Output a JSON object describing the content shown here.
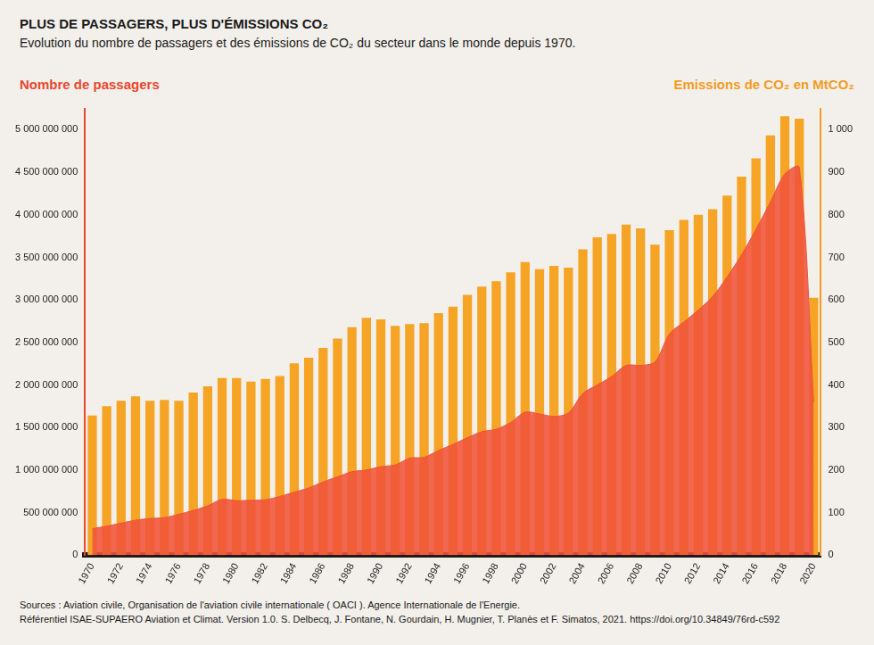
{
  "chart_data": {
    "type": "bar",
    "title": "PLUS DE PASSAGERS, PLUS D'ÉMISSIONS CO₂",
    "subtitle": "Evolution du nombre de passagers et des émissions de CO₂ du secteur dans le monde depuis 1970.",
    "y_label": "Nombre de passagers",
    "y2_label": "Emissions de CO₂ en MtCO₂",
    "source": [
      "Sources : Aviation civile, Organisation de l'aviation civile internationale ( OACI ). Agence Internationale de l'Energie.",
      "Référentiel ISAE-SUPAERO Aviation et Climat. Version 1.0. S. Delbecq, J. Fontane, N. Gourdain, H. Mugnier, T. Planès et F. Simatos, 2021. https://doi.org/10.34849/76rd-c592"
    ],
    "categories": [
      "1970",
      null,
      "1972",
      null,
      "1974",
      null,
      "1976",
      null,
      "1978",
      null,
      "1980",
      null,
      "1982",
      null,
      "1984",
      null,
      "1986",
      null,
      "1988",
      null,
      "1990",
      null,
      "1992",
      null,
      "1994",
      null,
      "1996",
      null,
      "1998",
      null,
      "2000",
      null,
      "2002",
      null,
      "2004",
      null,
      "2006",
      null,
      "2008",
      null,
      "2010",
      null,
      "2012",
      null,
      "2014",
      null,
      "2016",
      null,
      "2018",
      null,
      "2020"
    ],
    "series": [
      {
        "type": "line",
        "color": "#f0533a",
        "axis": "y",
        "values": [
          310000000,
          340000000,
          375000000,
          410000000,
          430000000,
          440000000,
          480000000,
          525000000,
          580000000,
          655000000,
          640000000,
          645000000,
          650000000,
          690000000,
          740000000,
          790000000,
          860000000,
          920000000,
          980000000,
          1000000000,
          1040000000,
          1060000000,
          1140000000,
          1150000000,
          1230000000,
          1300000000,
          1380000000,
          1450000000,
          1480000000,
          1560000000,
          1680000000,
          1660000000,
          1630000000,
          1670000000,
          1900000000,
          2000000000,
          2100000000,
          2230000000,
          2230000000,
          2270000000,
          2600000000,
          2740000000,
          2880000000,
          3040000000,
          3270000000,
          3530000000,
          3830000000,
          4150000000,
          4480000000,
          4560000000,
          1800000000
        ]
      },
      {
        "type": "bar",
        "color": "#f5a425",
        "axis": "y2",
        "values": [
          328,
          350,
          363,
          373,
          363,
          365,
          363,
          382,
          397,
          416,
          416,
          408,
          414,
          421,
          451,
          464,
          487,
          509,
          536,
          558,
          554,
          539,
          543,
          545,
          569,
          584,
          612,
          631,
          644,
          665,
          689,
          672,
          680,
          676,
          719,
          747,
          755,
          777,
          768,
          730,
          764,
          788,
          800,
          813,
          845,
          890,
          933,
          987,
          1032,
          1026,
          605
        ]
      }
    ],
    "ylim": [
      0,
      5250000000
    ],
    "yticks": [
      0,
      {
        "value": 500000000,
        "label": "500 000 000"
      },
      {
        "value": 1000000000,
        "label": "1 000 000 000"
      },
      {
        "value": 1500000000,
        "label": "1 500 000 000"
      },
      {
        "value": 2000000000,
        "label": "2 000 000 000"
      },
      {
        "value": 2500000000,
        "label": "2 500 000 000"
      },
      {
        "value": 3000000000,
        "label": "3 000 000 000"
      },
      {
        "value": 3500000000,
        "label": "3 500 000 000"
      },
      {
        "value": 4000000000,
        "label": "4 000 000 000"
      },
      {
        "value": 4500000000,
        "label": "4 500 000 000"
      },
      {
        "value": 5000000000,
        "label": "5 000 000 000"
      }
    ],
    "y2lim": [
      0,
      1050
    ],
    "y2ticks": [
      0,
      100,
      200,
      300,
      400,
      500,
      600,
      700,
      800,
      900,
      {
        "value": 1000,
        "label": "1 000"
      }
    ],
    "grid": false
  }
}
